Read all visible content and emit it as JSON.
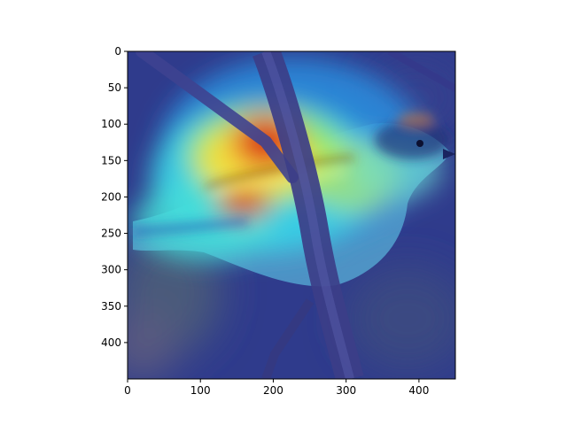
{
  "figure": {
    "x_axis": {
      "range": [
        0,
        450
      ],
      "ticks": [
        0,
        100,
        200,
        300,
        400
      ],
      "tick_labels": [
        "0",
        "100",
        "200",
        "300",
        "400"
      ]
    },
    "y_axis": {
      "range": [
        0,
        450
      ],
      "inverted": true,
      "ticks": [
        0,
        50,
        100,
        150,
        200,
        250,
        300,
        350,
        400
      ],
      "tick_labels": [
        "0",
        "50",
        "100",
        "150",
        "200",
        "250",
        "300",
        "350",
        "400"
      ]
    },
    "image": {
      "subject": "small bird perched on a branch with a jet-colormap attention heatmap overlay",
      "colors": {
        "background": "#2e3a8a",
        "heat_low": "#1f2fb8",
        "heat_mid": "#33d6e8",
        "heat_warm": "#f0e040",
        "heat_high": "#d82a12",
        "branch": "#3c3f86"
      }
    }
  }
}
